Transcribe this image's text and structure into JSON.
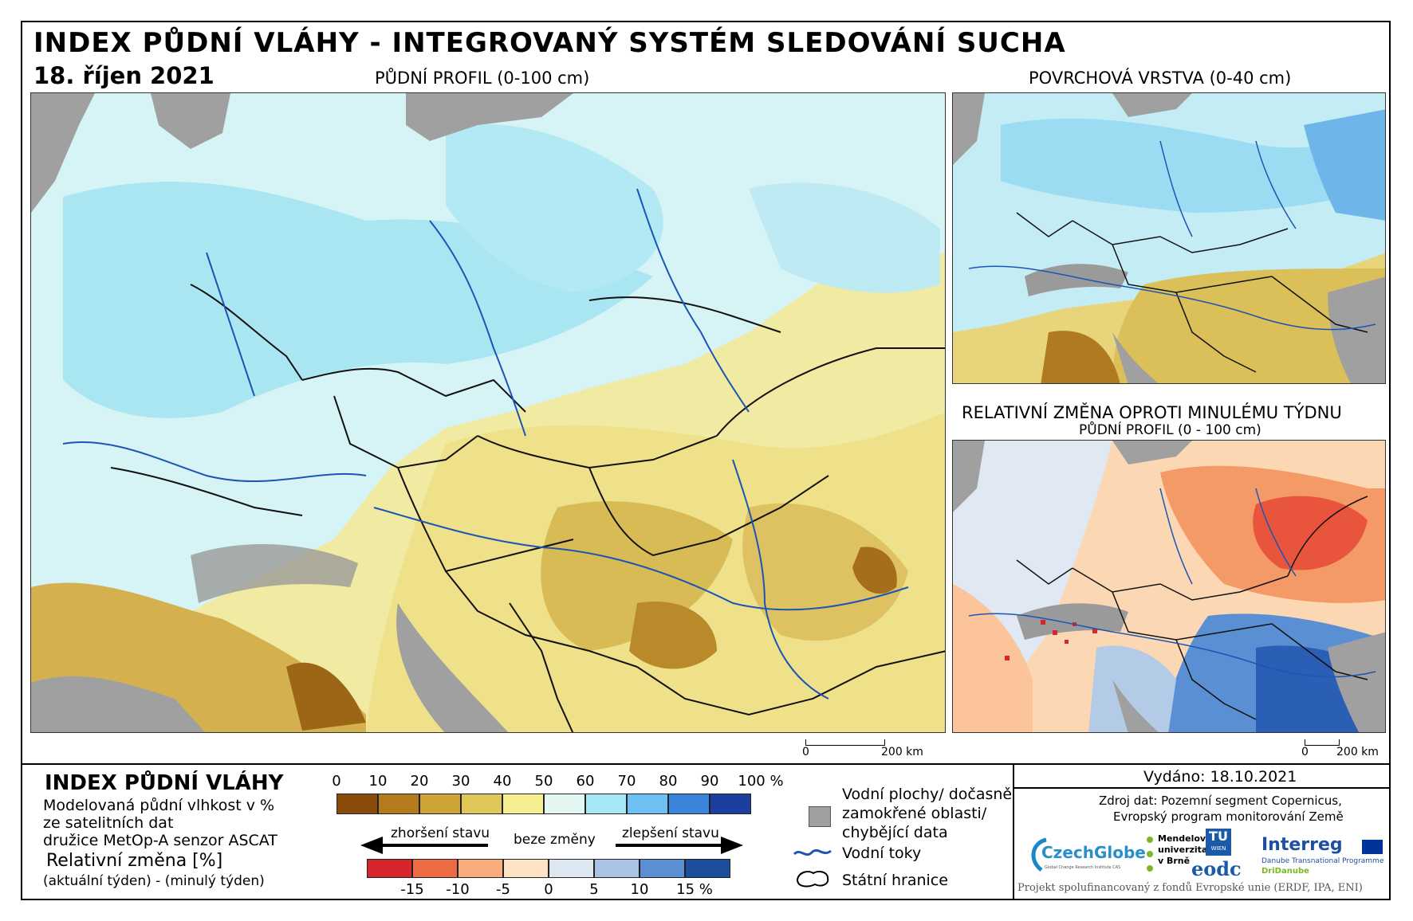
{
  "header": {
    "title": "INDEX PŮDNÍ VLÁHY - INTEGROVANÝ SYSTÉM SLEDOVÁNÍ SUCHA",
    "date": "18. říjen 2021",
    "main_map_title": "PŮDNÍ PROFIL (0-100 cm)",
    "surface_map_title": "POVRCHOVÁ VRSTVA (0-40 cm)",
    "change_map_title": "RELATIVNÍ ZMĚNA OPROTI MINULÉMU TÝDNU",
    "change_map_subtitle": "PŮDNÍ PROFIL (0 - 100 cm)"
  },
  "scalebars": {
    "main": {
      "zero": "0",
      "end": "200 km"
    },
    "inset": {
      "zero": "0",
      "end": "200 km"
    }
  },
  "legend": {
    "index_title": "INDEX PŮDNÍ VLÁHY",
    "index_desc_1": "Modelovaná půdní vlhkost v %",
    "index_desc_2": "ze satelitních dat",
    "index_desc_3": "družice MetOp-A senzor ASCAT",
    "change_title": "Relativní změna [%]",
    "change_desc": "(aktuální týden) - (minulý týden)",
    "index_ticks": [
      "0",
      "10",
      "20",
      "30",
      "40",
      "50",
      "60",
      "70",
      "80",
      "90",
      "100 %"
    ],
    "index_colors": [
      "#8a4a0c",
      "#b57a1c",
      "#cfa437",
      "#e1c65a",
      "#f5ef92",
      "#e4f6f1",
      "#a6e8f5",
      "#6ec0f3",
      "#3a84dc",
      "#1c3e9e"
    ],
    "arrow_worse": "zhoršení stavu",
    "arrow_none": "beze změny",
    "arrow_better": "zlepšení stavu",
    "change_ticks": [
      "-15",
      "-10",
      "-5",
      "0",
      "5",
      "10",
      "15 %"
    ],
    "change_colors": [
      "#d7262b",
      "#ee6a45",
      "#f8ae7c",
      "#fde3c3",
      "#dde7f2",
      "#a9c3e6",
      "#5b8fd4",
      "#1d4e9e"
    ],
    "water_label_1": "Vodní plochy/ dočasně",
    "water_label_2": "zamokřené oblasti/",
    "water_label_3": "chybějící data",
    "rivers_label": "Vodní toky",
    "borders_label": "Státní hranice"
  },
  "footer": {
    "issued": "Vydáno: 18.10.2021",
    "source_1": "Zdroj dat: Pozemní segment Copernicus,",
    "source_2": "Evropský program monitorování Země",
    "logo_czechglobe": "CzechGlobe",
    "logo_czechglobe_sub": "Global Change Research Institute CAS",
    "logo_mendel_1": "Mendelova",
    "logo_mendel_2": "univerzita",
    "logo_mendel_3": "v Brně",
    "logo_tu_1": "TU",
    "logo_tu_2": "WIEN",
    "logo_eodc": "eodc",
    "logo_interreg": "Interreg",
    "logo_interreg_sub": "Danube Transnational Programme",
    "logo_dridanube": "DriDanube",
    "project": "Projekt spolufinancovaný z fondů Evropské unie (ERDF, IPA, ENI)"
  }
}
